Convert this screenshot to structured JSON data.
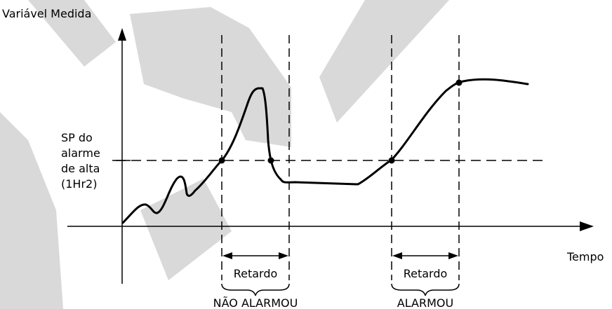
{
  "diagram": {
    "y_axis_label": "Variável Medida",
    "x_axis_label": "Tempo",
    "setpoint_label": [
      "SP do",
      "alarme",
      "de alta",
      "(1Hr2)"
    ],
    "delay_label_1": "Retardo",
    "delay_label_2": "Retardo",
    "outcome_1": "NÃO ALARMOU",
    "outcome_2": "ALARMOU",
    "watermark_color": "#d9d9d9",
    "line_color": "#000000"
  }
}
